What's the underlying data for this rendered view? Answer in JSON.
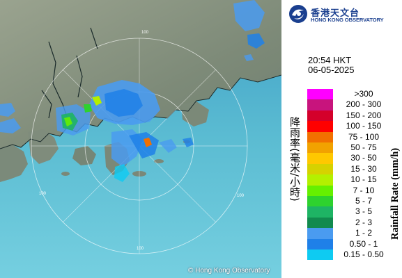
{
  "logo": {
    "chinese_name": "香港天文台",
    "english_name": "HONG KONG OBSERVATORY"
  },
  "timestamp": {
    "time": "20:54 HKT",
    "date": "06-05-2025"
  },
  "legend": {
    "title_cn": "降雨率(毫米/小時)",
    "title_en": "Rainfall Rate (mm/h)",
    "bands": [
      {
        "label": ">300",
        "color": "#ff00ff"
      },
      {
        "label": "200 - 300",
        "color": "#c8147d"
      },
      {
        "label": "150 - 200",
        "color": "#d4002b"
      },
      {
        "label": "100 - 150",
        "color": "#ff0000"
      },
      {
        "label": "75 - 100",
        "color": "#f27000"
      },
      {
        "label": "50 - 75",
        "color": "#f2a200"
      },
      {
        "label": "30 - 50",
        "color": "#ffc800"
      },
      {
        "label": "15 - 30",
        "color": "#d6d200"
      },
      {
        "label": "10 - 15",
        "color": "#b4f000"
      },
      {
        "label": "7 - 10",
        "color": "#66f000"
      },
      {
        "label": "5 - 7",
        "color": "#2ed22e"
      },
      {
        "label": "3 - 5",
        "color": "#1eb464"
      },
      {
        "label": "2 - 3",
        "color": "#118a4e"
      },
      {
        "label": "1 - 2",
        "color": "#4a9bf0"
      },
      {
        "label": "0.50 - 1",
        "color": "#1f80e8"
      },
      {
        "label": "0.15 - 0.50",
        "color": "#0ecbf2"
      }
    ]
  },
  "map": {
    "range_label": "100",
    "copyright": "© Hong Kong Observatory",
    "sea_color": "#5fb8cf",
    "land_color": "#7f8f7e"
  }
}
